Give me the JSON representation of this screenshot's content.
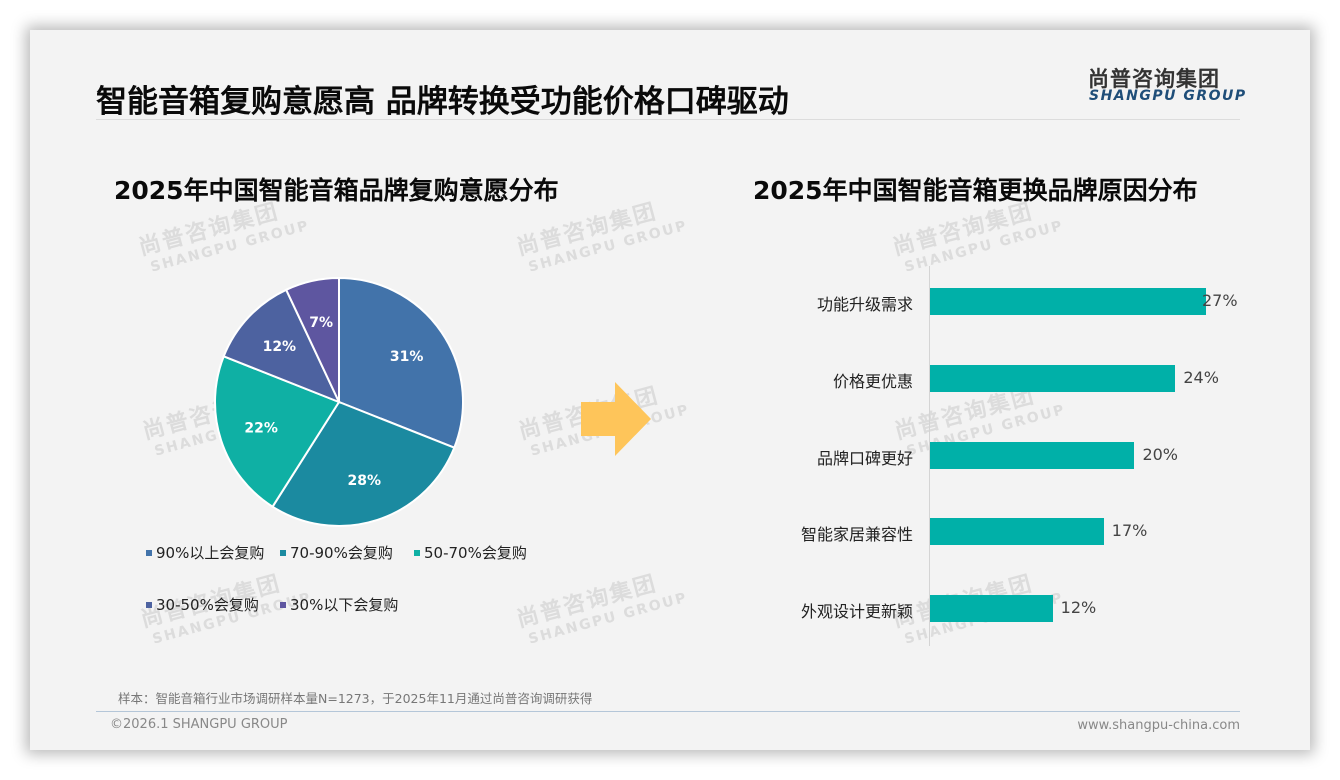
{
  "header": {
    "main_title": "智能音箱复购意愿高 品牌转换受功能价格口碑驱动",
    "logo_cn": "尚普咨询集团",
    "logo_en": "SHANGPU GROUP"
  },
  "watermark": {
    "cn": "尚普咨询集团",
    "en": "SHANGPU GROUP"
  },
  "colors": {
    "pie": [
      "#4273aa",
      "#1b8aa0",
      "#0fb0a4",
      "#4d62a0",
      "#5e56a0"
    ],
    "bar": "#00b0a8",
    "arrow": "#fec55a",
    "logo_en": "#1f4e79"
  },
  "chart_data": [
    {
      "type": "pie",
      "title": "2025年中国智能音箱品牌复购意愿分布",
      "categories": [
        "90%以上会复购",
        "70-90%会复购",
        "50-70%会复购",
        "30-50%会复购",
        "30%以下会复购"
      ],
      "values": [
        31,
        28,
        22,
        12,
        7
      ],
      "labels": [
        "31%",
        "28%",
        "22%",
        "12%",
        "7%"
      ],
      "legend_position": "bottom",
      "start_angle": "12 o'clock, clockwise"
    },
    {
      "type": "bar",
      "orientation": "horizontal",
      "title": "2025年中国智能音箱更换品牌原因分布",
      "categories": [
        "功能升级需求",
        "价格更优惠",
        "品牌口碑更好",
        "智能家居兼容性",
        "外观设计更新颖"
      ],
      "values": [
        27,
        24,
        20,
        17,
        12
      ],
      "labels": [
        "27%",
        "24%",
        "20%",
        "17%",
        "12%"
      ],
      "xlabel": "",
      "ylabel": "",
      "grid": false
    }
  ],
  "footer": {
    "note": "样本：智能音箱行业市场调研样本量N=1273，于2025年11月通过尚普咨询调研获得",
    "copyright": "©2026.1 SHANGPU GROUP",
    "website": "www.shangpu-china.com"
  }
}
